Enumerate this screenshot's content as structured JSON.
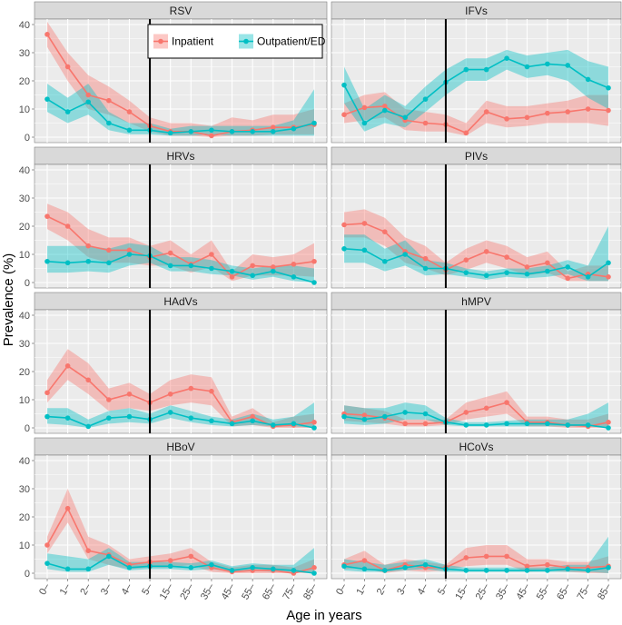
{
  "chart_data": {
    "type": "line",
    "ylabel": "Prevalence (%)",
    "xlabel": "Age in years",
    "categories": [
      "0–",
      "1–",
      "2–",
      "3–",
      "4–",
      "5–",
      "15–",
      "25–",
      "35–",
      "45–",
      "55–",
      "65–",
      "75–",
      "85–"
    ],
    "ylim": [
      0,
      40
    ],
    "yticks": [
      0,
      10,
      20,
      30,
      40
    ],
    "vline_category": "5–",
    "legend": {
      "position": "top-right inside first panel",
      "entries": [
        "Inpatient",
        "Outpatient/ED"
      ]
    },
    "colors": {
      "Inpatient": "#F8766D",
      "Outpatient/ED": "#00BFC4",
      "Inpatient_band": "#F8766D",
      "Outpatient/ED_band": "#00BFC4",
      "strip": "#D9D9D9",
      "panel": "#EBEBEB",
      "grid": "#FFFFFF"
    },
    "panels": [
      {
        "title": "RSV",
        "series": [
          {
            "name": "Inpatient",
            "values": [
              36.5,
              25,
              15,
              13,
              9,
              4,
              2,
              2,
              0.5,
              2,
              2.5,
              3.5,
              3.5,
              4.5
            ],
            "lower": [
              32,
              20,
              10,
              8,
              5,
              2,
              0.5,
              0.5,
              0,
              0.5,
              0.5,
              1,
              1,
              1
            ],
            "upper": [
              41,
              30,
              22,
              18,
              13,
              7,
              5,
              5,
              4,
              7,
              6,
              8,
              8,
              10
            ]
          },
          {
            "name": "Outpatient/ED",
            "values": [
              13.5,
              9,
              12.5,
              5,
              2.5,
              2.5,
              1.5,
              2,
              2.5,
              2,
              2,
              2,
              3,
              5
            ],
            "lower": [
              9,
              5,
              8,
              2.5,
              1,
              1,
              0.5,
              0.5,
              1,
              0.5,
              0.5,
              0.5,
              0.5,
              0.5
            ],
            "upper": [
              19,
              14,
              19,
              9,
              5,
              5,
              3,
              4,
              4,
              4,
              4,
              4,
              6,
              17
            ]
          }
        ]
      },
      {
        "title": "IFVs",
        "series": [
          {
            "name": "Inpatient",
            "values": [
              8,
              10.5,
              11,
              6,
              5,
              4.5,
              1.5,
              9,
              6.5,
              7,
              8.5,
              9,
              10,
              9.5
            ],
            "lower": [
              5,
              6,
              7,
              2.5,
              2,
              2,
              0.5,
              5,
              3.5,
              4,
              5,
              5,
              5,
              4
            ],
            "upper": [
              12,
              15,
              16,
              10,
              9,
              8,
              5,
              13,
              11,
              11,
              12,
              13,
              15,
              15
            ]
          },
          {
            "name": "Outpatient/ED",
            "values": [
              18.5,
              5,
              9.5,
              7,
              13.5,
              19.5,
              24,
              24,
              28,
              25,
              26,
              25.5,
              20.5,
              17.5
            ],
            "lower": [
              12,
              2,
              5,
              3.5,
              9,
              15,
              20,
              20,
              24,
              21,
              22,
              20,
              14,
              10
            ],
            "upper": [
              25,
              10,
              15,
              11,
              18,
              24,
              28,
              28,
              31,
              29,
              30,
              31,
              27,
              25
            ]
          }
        ]
      },
      {
        "title": "HRVs",
        "series": [
          {
            "name": "Inpatient",
            "values": [
              23.5,
              20,
              13,
              11.5,
              11.5,
              9,
              10.5,
              6.5,
              10,
              2,
              6,
              5.5,
              6.5,
              7.5
            ],
            "lower": [
              19,
              15,
              9,
              7,
              7,
              6,
              6,
              3.5,
              5.5,
              0.5,
              2.5,
              2.5,
              2.5,
              2
            ],
            "upper": [
              28,
              25,
              19,
              16,
              16,
              13,
              15,
              10,
              15,
              4,
              10,
              9,
              10,
              14
            ]
          },
          {
            "name": "Outpatient/ED",
            "values": [
              7.5,
              7,
              7.5,
              7,
              10,
              9.5,
              6,
              6,
              5,
              4,
              2.5,
              4,
              2,
              0
            ],
            "lower": [
              3.5,
              3.5,
              4,
              3.5,
              6,
              7,
              4,
              4,
              3,
              2.5,
              1,
              2,
              0.5,
              0
            ],
            "upper": [
              13,
              13,
              13,
              12,
              14,
              13,
              9,
              9,
              8,
              6,
              5,
              6,
              6,
              5
            ]
          }
        ]
      },
      {
        "title": "PIVs",
        "series": [
          {
            "name": "Inpatient",
            "values": [
              20.5,
              21,
              18,
              11,
              8.5,
              4.5,
              8,
              11,
              9,
              5.5,
              7,
              1.5,
              3,
              2
            ],
            "lower": [
              16,
              16,
              13,
              7,
              5,
              2.5,
              4.5,
              7,
              5,
              2.5,
              3.5,
              0.5,
              0.5,
              0.5
            ],
            "upper": [
              25,
              26,
              23,
              16,
              13,
              7,
              12,
              15,
              13,
              9,
              11,
              4,
              6,
              6
            ]
          },
          {
            "name": "Outpatient/ED",
            "values": [
              12,
              11.5,
              7.5,
              10,
              5,
              5,
              3.5,
              2.5,
              3.5,
              3,
              4,
              5.5,
              2,
              7
            ],
            "lower": [
              7,
              7,
              4,
              6,
              2.5,
              3,
              2,
              1,
              2,
              1.5,
              2,
              3,
              0.5,
              0.5
            ],
            "upper": [
              17,
              17,
              12,
              15,
              8,
              7,
              5,
              4,
              5,
              5,
              6,
              8,
              6,
              20
            ]
          }
        ]
      },
      {
        "title": "HAdVs",
        "series": [
          {
            "name": "Inpatient",
            "values": [
              12.5,
              22,
              17,
              10,
              12,
              9,
              12,
              14,
              13,
              2,
              4,
              0.5,
              1,
              2
            ],
            "lower": [
              9,
              17,
              12,
              6,
              7,
              6,
              8,
              9,
              8,
              0.5,
              1,
              0,
              0,
              0
            ],
            "upper": [
              17,
              28,
              23,
              14,
              16,
              12,
              17,
              19,
              18,
              4,
              7,
              2,
              4,
              5
            ]
          },
          {
            "name": "Outpatient/ED",
            "values": [
              4,
              3.5,
              0.5,
              3.5,
              4,
              3,
              5.5,
              3.5,
              2.5,
              1.5,
              2.5,
              1,
              1.5,
              0
            ],
            "lower": [
              1.5,
              1,
              0,
              1.5,
              2,
              1.5,
              3.5,
              2,
              1,
              0.5,
              1,
              0.5,
              0.5,
              0
            ],
            "upper": [
              7,
              7,
              3,
              6,
              7,
              5,
              8,
              6,
              4,
              3,
              5,
              3,
              4,
              9
            ]
          }
        ]
      },
      {
        "title": "hMPV",
        "series": [
          {
            "name": "Inpatient",
            "values": [
              5,
              4.5,
              3.5,
              1.5,
              1.5,
              2,
              5.5,
              7,
              9,
              2,
              2,
              1,
              0.5,
              2
            ],
            "lower": [
              2.5,
              2,
              1.5,
              0.5,
              0.5,
              1,
              3,
              4,
              5,
              0.5,
              0.5,
              0,
              0,
              0
            ],
            "upper": [
              8,
              7,
              6,
              3,
              3,
              3,
              9,
              11,
              13,
              4,
              4,
              3,
              3,
              5
            ]
          },
          {
            "name": "Outpatient/ED",
            "values": [
              4,
              3,
              4,
              5.5,
              5,
              2,
              1,
              1,
              1.5,
              1.5,
              1.5,
              1,
              1,
              0
            ],
            "lower": [
              1.5,
              1,
              1.5,
              3,
              3,
              1,
              0.5,
              0.5,
              0.5,
              0.5,
              0.5,
              0.5,
              0.5,
              0
            ],
            "upper": [
              8,
              7,
              7,
              9,
              8,
              3.5,
              2,
              2,
              2.5,
              3,
              3,
              3,
              5,
              9
            ]
          }
        ]
      },
      {
        "title": "HBoV",
        "series": [
          {
            "name": "Inpatient",
            "values": [
              10,
              23,
              8,
              6.5,
              3,
              4,
              4.5,
              6,
              2,
              0.5,
              1,
              1,
              0,
              2
            ],
            "lower": [
              7,
              18,
              5,
              3,
              1.5,
              2,
              2,
              3,
              0.5,
              0,
              0,
              0,
              0,
              0
            ],
            "upper": [
              13,
              30,
              13,
              10,
              5,
              6,
              7,
              9,
              4,
              2,
              3,
              3,
              2,
              5
            ]
          },
          {
            "name": "Outpatient/ED",
            "values": [
              3.5,
              1.5,
              1.5,
              6,
              2,
              2.5,
              2.5,
              2,
              3,
              1,
              2,
              1.5,
              1,
              0
            ],
            "lower": [
              1.5,
              0.5,
              0.5,
              3,
              1,
              1.5,
              1.5,
              1,
              1.5,
              0.5,
              1,
              0.5,
              0.5,
              0
            ],
            "upper": [
              7,
              6,
              5,
              9,
              4,
              4,
              4,
              3.5,
              4.5,
              2.5,
              3.5,
              3,
              3,
              9
            ]
          }
        ]
      },
      {
        "title": "HCoVs",
        "series": [
          {
            "name": "Inpatient",
            "values": [
              3,
              4.5,
              1,
              3,
              2,
              2,
              5.5,
              6,
              6,
              2.5,
              3,
              2,
              2,
              2.5
            ],
            "lower": [
              1.5,
              2,
              0,
              1,
              0.5,
              1,
              2.5,
              3,
              3,
              0.5,
              1,
              0.5,
              0,
              0
            ],
            "upper": [
              5,
              8,
              3,
              5,
              4,
              3,
              9,
              10,
              10,
              5,
              5,
              4,
              4,
              6
            ]
          },
          {
            "name": "Outpatient/ED",
            "values": [
              2.5,
              1.5,
              1,
              2,
              3,
              1.5,
              1,
              1,
              1,
              1,
              1,
              1.5,
              1,
              2
            ],
            "lower": [
              1,
              0.5,
              0.5,
              1,
              1.5,
              0.5,
              0.5,
              0.5,
              0.5,
              0.5,
              0.5,
              0.5,
              0.5,
              0
            ],
            "upper": [
              5,
              4,
              3,
              4,
              5,
              3,
              2,
              2,
              2,
              2,
              2,
              3,
              3,
              13
            ]
          }
        ]
      }
    ]
  }
}
